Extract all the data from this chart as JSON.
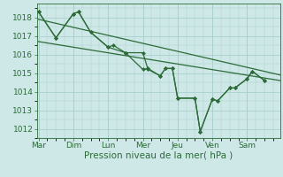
{
  "xlabel": "Pression niveau de la mer( hPa )",
  "background_color": "#cde8e7",
  "grid_color": "#aacfce",
  "line_color": "#2d6b38",
  "ylim": [
    1011.5,
    1018.75
  ],
  "yticks": [
    1012,
    1013,
    1014,
    1015,
    1016,
    1017,
    1018
  ],
  "day_labels": [
    "Mar",
    "Dim",
    "Lun",
    "Mer",
    "Jeu",
    "Ven",
    "Sam"
  ],
  "day_positions": [
    0,
    1,
    2,
    3,
    4,
    5,
    6
  ],
  "xlim": [
    -0.05,
    6.95
  ],
  "series1_x": [
    0.0,
    0.5,
    1.0,
    1.15,
    1.5,
    2.0,
    2.15,
    2.5,
    3.0,
    3.15,
    3.5,
    3.65,
    3.85,
    4.0,
    4.5,
    4.65,
    5.0,
    5.15,
    5.5,
    5.65,
    6.0,
    6.15,
    6.5
  ],
  "series1_y": [
    1018.3,
    1016.9,
    1018.2,
    1018.3,
    1017.2,
    1016.4,
    1016.5,
    1016.1,
    1015.2,
    1015.25,
    1014.85,
    1015.25,
    1015.25,
    1013.65,
    1013.65,
    1011.85,
    1013.6,
    1013.5,
    1014.2,
    1014.2,
    1014.7,
    1015.1,
    1014.6
  ],
  "series2_x": [
    0.0,
    0.5,
    1.0,
    1.15,
    1.5,
    2.0,
    2.5,
    3.0,
    3.15,
    3.5,
    3.65,
    3.85,
    4.0,
    4.5,
    4.65,
    5.0,
    5.15,
    5.5,
    5.65,
    6.0,
    6.15,
    6.5
  ],
  "series2_y": [
    1018.3,
    1016.9,
    1018.2,
    1018.3,
    1017.2,
    1016.4,
    1016.1,
    1016.1,
    1015.2,
    1014.85,
    1015.25,
    1015.25,
    1013.65,
    1013.65,
    1011.85,
    1013.6,
    1013.5,
    1014.2,
    1014.2,
    1014.7,
    1015.1,
    1014.6
  ],
  "trend1_x": [
    0.0,
    6.95
  ],
  "trend1_y": [
    1017.9,
    1014.9
  ],
  "trend2_x": [
    0.0,
    6.95
  ],
  "trend2_y": [
    1016.7,
    1014.6
  ],
  "xlabel_fontsize": 7.5,
  "tick_fontsize": 6.5
}
